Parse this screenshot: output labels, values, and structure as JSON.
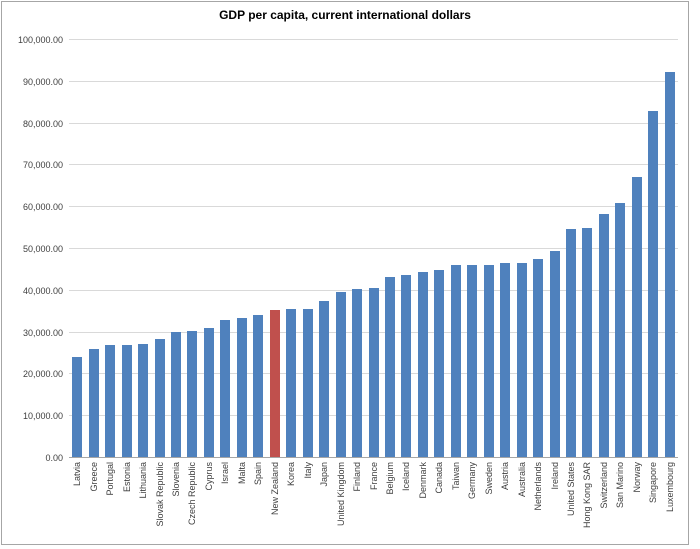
{
  "title": "GDP per capita, current international dollars",
  "chart_data": {
    "type": "bar",
    "title": "GDP per capita, current international dollars",
    "categories": [
      "Latvia",
      "Greece",
      "Portugal",
      "Estonia",
      "Lithuania",
      "Slovak Republic",
      "Slovenia",
      "Czech Republic",
      "Cyprus",
      "Israel",
      "Malta",
      "Spain",
      "New Zealand",
      "Korea",
      "Italy",
      "Japan",
      "United Kingdom",
      "Finland",
      "France",
      "Belgium",
      "Iceland",
      "Denmark",
      "Canada",
      "Taiwan",
      "Germany",
      "Sweden",
      "Austria",
      "Australia",
      "Netherlands",
      "Ireland",
      "United States",
      "Hong Kong SAR",
      "Switzerland",
      "San Marino",
      "Norway",
      "Singapore",
      "Luxembourg"
    ],
    "values": [
      23900,
      25900,
      26700,
      26900,
      27000,
      28200,
      29800,
      30100,
      30900,
      32700,
      33200,
      34000,
      35200,
      35300,
      35500,
      37400,
      39500,
      40300,
      40400,
      43000,
      43600,
      44300,
      44800,
      45900,
      45900,
      46000,
      46400,
      46400,
      47400,
      49400,
      54600,
      54700,
      58100,
      60700,
      66900,
      82800,
      92000
    ],
    "highlight_category": "New Zealand",
    "bar_color": "#4f81bd",
    "highlight_color": "#c0504d",
    "ylim": [
      0,
      100000
    ],
    "ytick_interval": 10000,
    "ytick_labels": [
      "0.00",
      "10,000.00",
      "20,000.00",
      "30,000.00",
      "40,000.00",
      "50,000.00",
      "60,000.00",
      "70,000.00",
      "80,000.00",
      "90,000.00",
      "100,000.00"
    ],
    "xlabel": "",
    "ylabel": "",
    "grid": true,
    "gridline_color": "#d9d9d9",
    "axis_color": "#a6a6a6",
    "legend": "none"
  }
}
